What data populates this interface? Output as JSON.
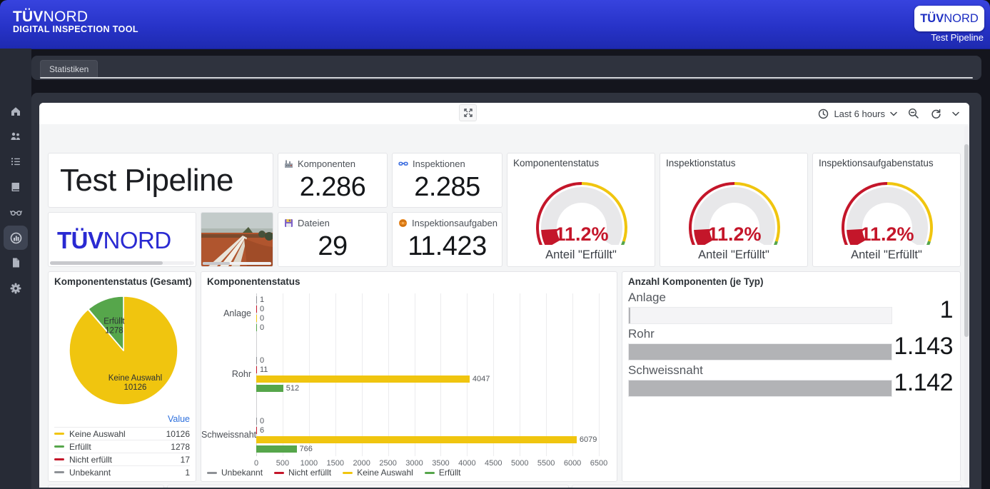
{
  "app": {
    "brand_bold": "TÜV",
    "brand_light": "NORD",
    "subtitle": "DIGITAL INSPECTION TOOL",
    "pipeline": "Test Pipeline"
  },
  "sidebar": {
    "items": [
      {
        "icon": "home-icon",
        "active": false
      },
      {
        "icon": "users-icon",
        "active": false
      },
      {
        "icon": "list-icon",
        "active": false
      },
      {
        "icon": "book-icon",
        "active": false
      },
      {
        "icon": "glasses-icon",
        "active": false
      },
      {
        "icon": "dashboards-icon",
        "active": true
      },
      {
        "icon": "document-icon",
        "active": false
      },
      {
        "icon": "settings-icon",
        "active": false
      }
    ]
  },
  "tabbar": {
    "tabs": [
      {
        "label": "Statistiken",
        "active": true
      }
    ]
  },
  "toolbar": {
    "time_range": "Last 6 hours"
  },
  "panels": {
    "title_panel": {
      "text": "Test Pipeline"
    },
    "stats": [
      {
        "icon": "factory-icon",
        "label": "Komponenten",
        "value": "2.286"
      },
      {
        "icon": "glasses-icon",
        "label": "Inspektionen",
        "value": "2.285"
      },
      {
        "icon": "floppy-icon",
        "label": "Dateien",
        "value": "29"
      },
      {
        "icon": "clipboard-icon",
        "label": "Inspektionsaufgaben",
        "value": "11.423"
      }
    ],
    "gauges": [
      {
        "title": "Komponentenstatus"
      },
      {
        "title": "Inspektionstatus"
      },
      {
        "title": "Inspektionsaufgabenstatus"
      }
    ],
    "logo_panel": {
      "bold": "TÜV",
      "light": "NORD"
    },
    "pie_panel_title": "Komponentenstatus (Gesamt)",
    "bar_panel_title": "Komponentenstatus",
    "bargauge_panel_title": "Anzahl Komponenten (je Typ)"
  },
  "colors": {
    "red": "#c4162a",
    "yellow": "#f0c50f",
    "green": "#56a64b",
    "gray": "#8e9196",
    "link_blue": "#2e70dd",
    "bar_gray": "#b2b3b6"
  },
  "chart_data": [
    {
      "id": "status-gauges",
      "type": "gauge",
      "applies_to": [
        "Komponentenstatus",
        "Inspektionstatus",
        "Inspektionsaufgabenstatus"
      ],
      "value_percent": 11.2,
      "display": "11.2%",
      "label": "Anteil \"Erfüllt\"",
      "min": 0,
      "max": 100,
      "thresholds": [
        {
          "color": "#c4162a",
          "from": 0,
          "to": 50
        },
        {
          "color": "#f0c50f",
          "from": 50,
          "to": 95
        },
        {
          "color": "#56a64b",
          "from": 95,
          "to": 100
        }
      ]
    },
    {
      "id": "komponentenstatus-gesamt",
      "type": "pie",
      "title": "Komponentenstatus (Gesamt)",
      "slices": [
        {
          "label": "Keine Auswahl",
          "value": 10126,
          "color": "#f0c50f"
        },
        {
          "label": "Nicht erfüllt",
          "value": 17,
          "color": "#c4162a"
        },
        {
          "label": "Unbekannt",
          "value": 1,
          "color": "#8e9196"
        },
        {
          "label": "Erfüllt",
          "value": 1278,
          "color": "#56a64b"
        }
      ],
      "legend": {
        "header": "Value",
        "rows": [
          {
            "label": "Keine Auswahl",
            "value": "10126",
            "color": "#f0c50f"
          },
          {
            "label": "Erfüllt",
            "value": "1278",
            "color": "#56a64b"
          },
          {
            "label": "Nicht erfüllt",
            "value": "17",
            "color": "#c4162a"
          },
          {
            "label": "Unbekannt",
            "value": "1",
            "color": "#8e9196"
          }
        ]
      }
    },
    {
      "id": "komponentenstatus-je-typ",
      "type": "bar",
      "orientation": "horizontal",
      "title": "Komponentenstatus",
      "categories": [
        "Anlage",
        "Rohr",
        "Schweissnaht"
      ],
      "series": [
        {
          "name": "Unbekannt",
          "color": "#8e9196",
          "values": [
            1,
            0,
            0
          ]
        },
        {
          "name": "Nicht erfüllt",
          "color": "#c4162a",
          "values": [
            0,
            11,
            6
          ]
        },
        {
          "name": "Keine Auswahl",
          "color": "#f0c50f",
          "values": [
            0,
            4047,
            6079
          ]
        },
        {
          "name": "Erfüllt",
          "color": "#56a64b",
          "values": [
            0,
            512,
            766
          ]
        }
      ],
      "xlim": [
        0,
        6500
      ],
      "xtick_step": 500,
      "grid": true,
      "legend_position": "bottom"
    },
    {
      "id": "anzahl-komponenten-je-typ",
      "type": "bar-gauge",
      "title": "Anzahl Komponenten (je Typ)",
      "rows": [
        {
          "label": "Anlage",
          "value": 1,
          "display": "1"
        },
        {
          "label": "Rohr",
          "value": 1143,
          "display": "1.143"
        },
        {
          "label": "Schweissnaht",
          "value": 1142,
          "display": "1.142"
        }
      ],
      "max": 1143,
      "bar_color": "#b2b3b6"
    }
  ]
}
